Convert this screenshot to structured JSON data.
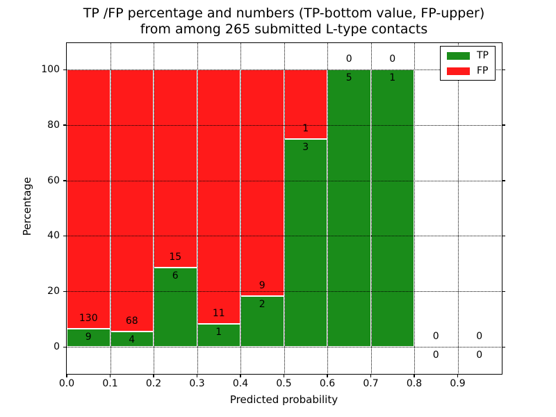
{
  "figure": {
    "title_line1": "TP /FP percentage and numbers (TP-bottom value, FP-upper)",
    "title_line2": "from among 265 submitted L-type contacts",
    "xlabel": "Predicted probability",
    "ylabel": "Percentage"
  },
  "colors": {
    "tp_green": "#1a8c1a",
    "fp_red": "#ff1a1a",
    "grid": "#000000",
    "spine": "#000000",
    "text": "#000000",
    "background": "#ffffff",
    "bar_edge": "#ffffff"
  },
  "legend": {
    "position": "upper right",
    "entries": [
      {
        "label": "TP",
        "color": "#1a8c1a"
      },
      {
        "label": "FP",
        "color": "#ff1a1a"
      }
    ]
  },
  "chart_data": {
    "type": "bar",
    "stacked": true,
    "title": "TP /FP percentage and numbers (TP-bottom value, FP-upper) from among 265 submitted L-type contacts",
    "xlabel": "Predicted probability",
    "ylabel": "Percentage",
    "total_submitted": 265,
    "xlim": [
      0.0,
      1.0
    ],
    "ylim": [
      -9.5,
      109.5
    ],
    "xticks": [
      "0.0",
      "0.1",
      "0.2",
      "0.3",
      "0.4",
      "0.5",
      "0.6",
      "0.7",
      "0.8",
      "0.9"
    ],
    "yticks": [
      0,
      20,
      40,
      60,
      80,
      100
    ],
    "grid": {
      "linestyle": "dotted",
      "color": "black",
      "on_top": true
    },
    "legend_position": "upper right",
    "bins": [
      {
        "x_start": 0.0,
        "x_end": 0.1,
        "tp": 9,
        "fp": 130,
        "tp_pct": 6.47,
        "fp_pct": 93.53
      },
      {
        "x_start": 0.1,
        "x_end": 0.2,
        "tp": 4,
        "fp": 68,
        "tp_pct": 5.56,
        "fp_pct": 94.44
      },
      {
        "x_start": 0.2,
        "x_end": 0.3,
        "tp": 6,
        "fp": 15,
        "tp_pct": 28.57,
        "fp_pct": 71.43
      },
      {
        "x_start": 0.3,
        "x_end": 0.4,
        "tp": 1,
        "fp": 11,
        "tp_pct": 8.33,
        "fp_pct": 91.67
      },
      {
        "x_start": 0.4,
        "x_end": 0.5,
        "tp": 2,
        "fp": 9,
        "tp_pct": 18.18,
        "fp_pct": 81.82
      },
      {
        "x_start": 0.5,
        "x_end": 0.6,
        "tp": 3,
        "fp": 1,
        "tp_pct": 75.0,
        "fp_pct": 25.0
      },
      {
        "x_start": 0.6,
        "x_end": 0.7,
        "tp": 5,
        "fp": 0,
        "tp_pct": 100.0,
        "fp_pct": 0.0
      },
      {
        "x_start": 0.7,
        "x_end": 0.8,
        "tp": 1,
        "fp": 0,
        "tp_pct": 100.0,
        "fp_pct": 0.0
      },
      {
        "x_start": 0.8,
        "x_end": 0.9,
        "tp": 0,
        "fp": 0,
        "tp_pct": 0.0,
        "fp_pct": 0.0
      },
      {
        "x_start": 0.9,
        "x_end": 1.0,
        "tp": 0,
        "fp": 0,
        "tp_pct": 0.0,
        "fp_pct": 0.0
      }
    ]
  }
}
